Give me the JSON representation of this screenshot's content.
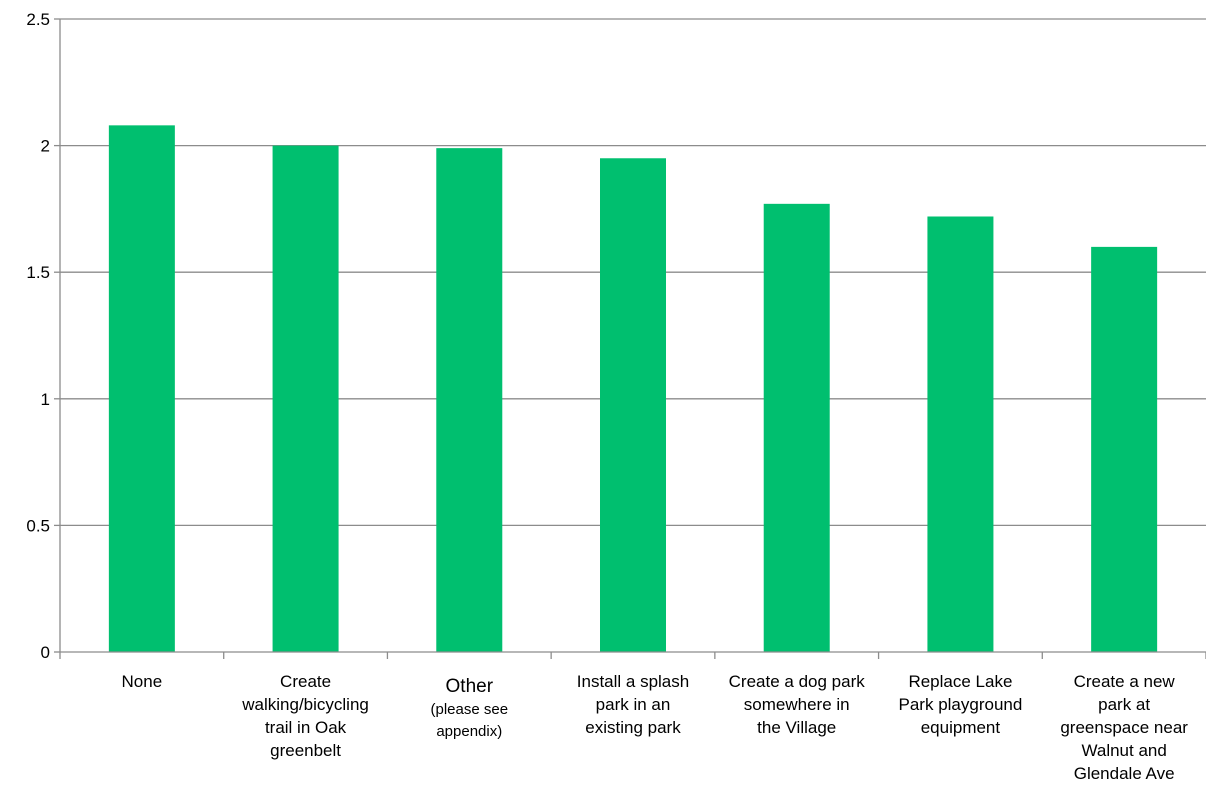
{
  "chart_data": {
    "type": "bar",
    "title": "",
    "xlabel": "",
    "ylabel": "",
    "ylim": [
      0,
      2.5
    ],
    "yticks": [
      "0",
      "0.5",
      "1",
      "1.5",
      "2",
      "2.5"
    ],
    "grid": true,
    "legend": "none",
    "bar_color": "#00BF6F",
    "grid_color": "#8C8C8C",
    "categories": [
      {
        "label": "None",
        "lines": [
          "None"
        ],
        "value": 2.08
      },
      {
        "label": "Create walking/bicycling trail in Oak greenbelt",
        "lines": [
          "Create",
          "walking/bicycling",
          "trail in Oak",
          "greenbelt"
        ],
        "value": 2.0
      },
      {
        "label": "Other (please see appendix)",
        "lines": [
          "Other",
          "(please see",
          "appendix)"
        ],
        "value": 1.99
      },
      {
        "label": "Install a splash park in an existing park",
        "lines": [
          "Install a splash",
          "park in an",
          "existing park"
        ],
        "value": 1.95
      },
      {
        "label": "Create a dog park somewhere in the Village",
        "lines": [
          "Create a dog park",
          "somewhere in",
          "the Village"
        ],
        "value": 1.77
      },
      {
        "label": "Replace Lake Park playground equipment",
        "lines": [
          "Replace Lake",
          "Park playground",
          "equipment"
        ],
        "value": 1.72
      },
      {
        "label": "Create a new park at greenspace near Walnut and Glendale Ave",
        "lines": [
          "Create a new",
          "park at",
          "greenspace near",
          "Walnut and",
          "Glendale Ave"
        ],
        "value": 1.6
      }
    ]
  }
}
